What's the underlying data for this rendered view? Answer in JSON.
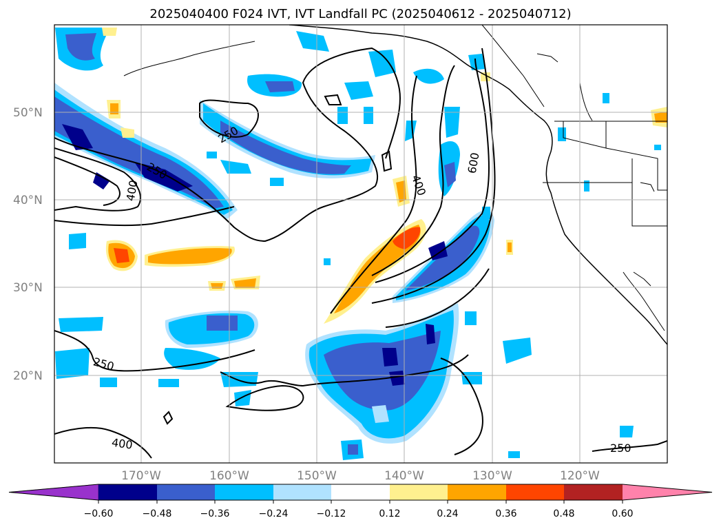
{
  "title": "2025040400 F024 IVT, IVT Landfall PC (2025040612 - 2025040712)",
  "lat_labels": [
    "50°N",
    "40°N",
    "30°N",
    "20°N"
  ],
  "lon_labels": [
    "170°W",
    "160°W",
    "150°W",
    "140°W",
    "130°W",
    "120°W"
  ],
  "contour_labels": [
    "250",
    "250",
    "400",
    "400",
    "600",
    "250",
    "400",
    "250"
  ],
  "colorbar": {
    "tick_labels": [
      "−0.60",
      "−0.48",
      "−0.36",
      "−0.24",
      "−0.12",
      "0.12",
      "0.24",
      "0.36",
      "0.48",
      "0.60"
    ],
    "colors": [
      "#9932cc",
      "#00008b",
      "#3a5fcd",
      "#00bfff",
      "#b0e2ff",
      "#ffffff",
      "#fff08f",
      "#ffa500",
      "#ff4500",
      "#b22222",
      "#ff82ab"
    ]
  },
  "colors": {
    "contour": "#000000",
    "coastline": "#000000",
    "grid": "#b0b0b0"
  }
}
